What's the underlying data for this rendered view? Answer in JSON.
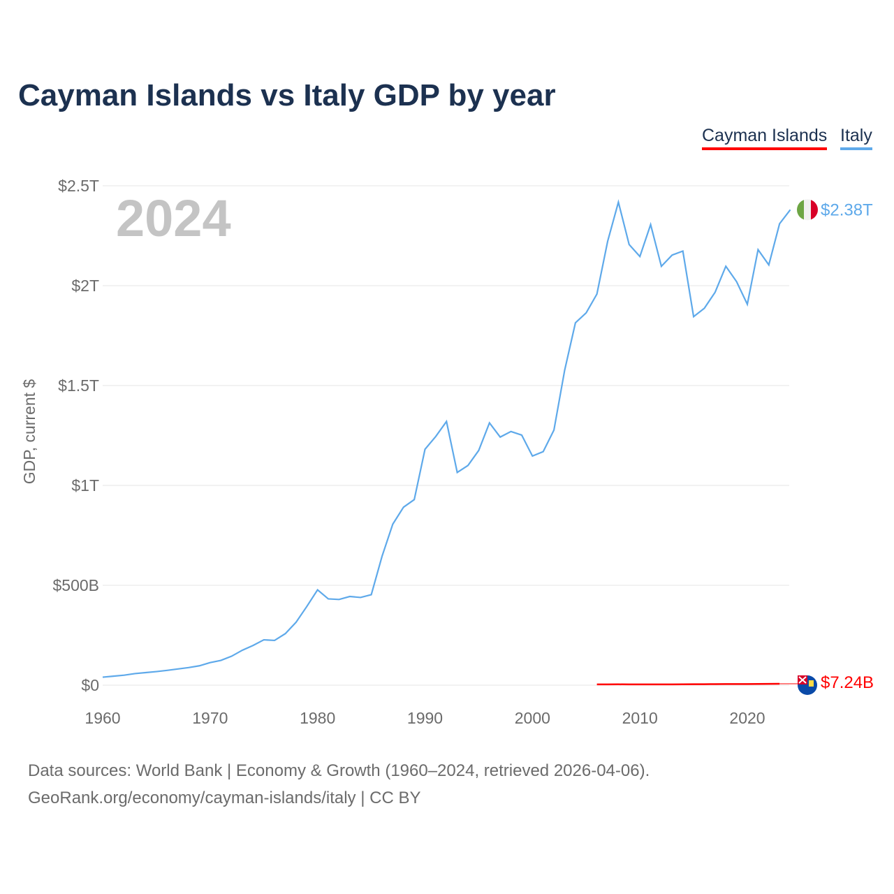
{
  "chart_data": {
    "type": "line",
    "title": "Cayman Islands vs Italy GDP by year",
    "xlabel": "",
    "ylabel": "GDP, current $",
    "year_label": "2024",
    "xlim": [
      1960,
      2024
    ],
    "ylim": [
      0,
      2.5
    ],
    "x_ticks": [
      {
        "v": 1960,
        "label": "1960"
      },
      {
        "v": 1970,
        "label": "1970"
      },
      {
        "v": 1980,
        "label": "1980"
      },
      {
        "v": 1990,
        "label": "1990"
      },
      {
        "v": 2000,
        "label": "2000"
      },
      {
        "v": 2010,
        "label": "2010"
      },
      {
        "v": 2020,
        "label": "2020"
      }
    ],
    "y_ticks": [
      {
        "v": 0,
        "label": "$0"
      },
      {
        "v": 0.5,
        "label": "$500B"
      },
      {
        "v": 1,
        "label": "$1T"
      },
      {
        "v": 1.5,
        "label": "$1.5T"
      },
      {
        "v": 2,
        "label": "$2T"
      },
      {
        "v": 2.5,
        "label": "$2.5T"
      }
    ],
    "grid": true,
    "legend_position": "top-right",
    "units": "trillion USD",
    "series": [
      {
        "name": "Cayman Islands",
        "color": "#ff0000",
        "end_label": "$7.24B",
        "x": [
          2006,
          2007,
          2008,
          2009,
          2010,
          2011,
          2012,
          2013,
          2014,
          2015,
          2016,
          2017,
          2018,
          2019,
          2020,
          2021,
          2022,
          2023,
          2024
        ],
        "values": [
          0.0039,
          0.0041,
          0.0042,
          0.004,
          0.0039,
          0.0039,
          0.004,
          0.0041,
          0.0043,
          0.0046,
          0.0049,
          0.0052,
          0.0055,
          0.0059,
          0.0056,
          0.006,
          0.0066,
          0.007,
          0.00724
        ]
      },
      {
        "name": "Italy",
        "color": "#5ea9ea",
        "end_label": "$2.38T",
        "x": [
          1960,
          1961,
          1962,
          1963,
          1964,
          1965,
          1966,
          1967,
          1968,
          1969,
          1970,
          1971,
          1972,
          1973,
          1974,
          1975,
          1976,
          1977,
          1978,
          1979,
          1980,
          1981,
          1982,
          1983,
          1984,
          1985,
          1986,
          1987,
          1988,
          1989,
          1990,
          1991,
          1992,
          1993,
          1994,
          1995,
          1996,
          1997,
          1998,
          1999,
          2000,
          2001,
          2002,
          2003,
          2004,
          2005,
          2006,
          2007,
          2008,
          2009,
          2010,
          2011,
          2012,
          2013,
          2014,
          2015,
          2016,
          2017,
          2018,
          2019,
          2020,
          2021,
          2022,
          2023,
          2024
        ],
        "values": [
          0.04,
          0.045,
          0.05,
          0.058,
          0.063,
          0.068,
          0.074,
          0.081,
          0.088,
          0.097,
          0.113,
          0.124,
          0.145,
          0.175,
          0.199,
          0.227,
          0.224,
          0.258,
          0.315,
          0.394,
          0.477,
          0.432,
          0.429,
          0.444,
          0.439,
          0.453,
          0.645,
          0.806,
          0.891,
          0.929,
          1.181,
          1.245,
          1.32,
          1.065,
          1.1,
          1.175,
          1.313,
          1.242,
          1.27,
          1.252,
          1.147,
          1.169,
          1.277,
          1.577,
          1.814,
          1.864,
          1.958,
          2.222,
          2.418,
          2.206,
          2.146,
          2.306,
          2.097,
          2.153,
          2.173,
          1.845,
          1.887,
          1.967,
          2.097,
          2.02,
          1.907,
          2.18,
          2.104,
          2.31,
          2.38
        ]
      }
    ]
  },
  "sources": {
    "line1": "Data sources: World Bank | Economy & Growth (1960–2024, retrieved 2026-04-06).",
    "line2": "GeoRank.org/economy/cayman-islands/italy | CC BY"
  }
}
